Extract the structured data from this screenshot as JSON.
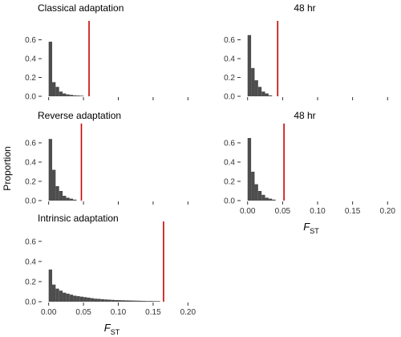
{
  "figure": {
    "ylabel": "Proportion",
    "xlabel_main": "F",
    "xlabel_sub": "ST"
  },
  "colors": {
    "bar": "#4d4d4d",
    "observed_line": "#cc0000",
    "axis": "#333333",
    "text": "#000000"
  },
  "chart_data": [
    {
      "type": "bar",
      "title": "Classical adaptation",
      "xlabel": "",
      "ylabel": "Proportion",
      "xlim": [
        -0.01,
        0.21
      ],
      "ylim": [
        0,
        0.75
      ],
      "xticks": [
        0.0,
        0.05,
        0.1,
        0.15,
        0.2
      ],
      "yticks": [
        0.0,
        0.2,
        0.4,
        0.6
      ],
      "ytick_labels": [
        "0.0",
        "0.2",
        "0.4",
        "0.6"
      ],
      "show_xtick_labels": false,
      "bin_width": 0.005,
      "bin_start": 0,
      "values": [
        0.58,
        0.15,
        0.1,
        0.05,
        0.03,
        0.02,
        0.015,
        0.01,
        0.008,
        0.006
      ],
      "observed": 0.058
    },
    {
      "type": "bar",
      "title": "48 hr",
      "xlabel": "",
      "ylabel": "",
      "xlim": [
        -0.01,
        0.21
      ],
      "ylim": [
        0,
        0.75
      ],
      "xticks": [
        0.0,
        0.05,
        0.1,
        0.15,
        0.2
      ],
      "yticks": [
        0.0,
        0.2,
        0.4,
        0.6
      ],
      "ytick_labels": [
        "0.0",
        "0.2",
        "0.4",
        "0.6"
      ],
      "show_xtick_labels": false,
      "bin_width": 0.005,
      "bin_start": 0,
      "values": [
        0.65,
        0.3,
        0.17,
        0.1,
        0.05,
        0.03,
        0.01
      ],
      "observed": 0.043
    },
    {
      "type": "bar",
      "title": "Reverse adaptation",
      "xlabel": "",
      "ylabel": "Proportion",
      "xlim": [
        -0.01,
        0.21
      ],
      "ylim": [
        0,
        0.75
      ],
      "xticks": [
        0.0,
        0.05,
        0.1,
        0.15,
        0.2
      ],
      "yticks": [
        0.0,
        0.2,
        0.4,
        0.6
      ],
      "ytick_labels": [
        "0.0",
        "0.2",
        "0.4",
        "0.6"
      ],
      "show_xtick_labels": false,
      "bin_width": 0.005,
      "bin_start": 0,
      "values": [
        0.64,
        0.32,
        0.15,
        0.1,
        0.05,
        0.03,
        0.02,
        0.01
      ],
      "observed": 0.047
    },
    {
      "type": "bar",
      "title": "48 hr",
      "xlabel": "F_ST",
      "ylabel": "",
      "xlim": [
        -0.01,
        0.21
      ],
      "ylim": [
        0,
        0.75
      ],
      "xticks": [
        0.0,
        0.05,
        0.1,
        0.15,
        0.2
      ],
      "yticks": [
        0.0,
        0.2,
        0.4,
        0.6
      ],
      "ytick_labels": [
        "0.0",
        "0.2",
        "0.4",
        "0.6"
      ],
      "show_xtick_labels": true,
      "xtick_labels": [
        "0.00",
        "0.05",
        "0.10",
        "0.15",
        "0.20"
      ],
      "bin_width": 0.005,
      "bin_start": 0,
      "values": [
        0.65,
        0.3,
        0.17,
        0.1,
        0.06,
        0.03,
        0.02,
        0.01
      ],
      "observed": 0.052
    },
    {
      "type": "bar",
      "title": "Intrinsic adaptation",
      "xlabel": "F_ST",
      "ylabel": "",
      "xlim": [
        -0.01,
        0.21
      ],
      "ylim": [
        0,
        0.75
      ],
      "xticks": [
        0.0,
        0.05,
        0.1,
        0.15,
        0.2
      ],
      "yticks": [
        0.0,
        0.2,
        0.4,
        0.6
      ],
      "ytick_labels": [
        "0.0",
        "0.2",
        "0.4",
        "0.6"
      ],
      "show_xtick_labels": true,
      "xtick_labels": [
        "0.00",
        "0.05",
        "0.10",
        "0.15",
        "0.20"
      ],
      "bin_width": 0.005,
      "bin_start": 0,
      "values": [
        0.32,
        0.17,
        0.13,
        0.11,
        0.09,
        0.08,
        0.07,
        0.06,
        0.055,
        0.05,
        0.045,
        0.04,
        0.035,
        0.03,
        0.028,
        0.025,
        0.022,
        0.02,
        0.018,
        0.016,
        0.015,
        0.014,
        0.013,
        0.012,
        0.011,
        0.01,
        0.009,
        0.008,
        0.007,
        0.007,
        0.006,
        0.006
      ],
      "observed": 0.165
    }
  ]
}
